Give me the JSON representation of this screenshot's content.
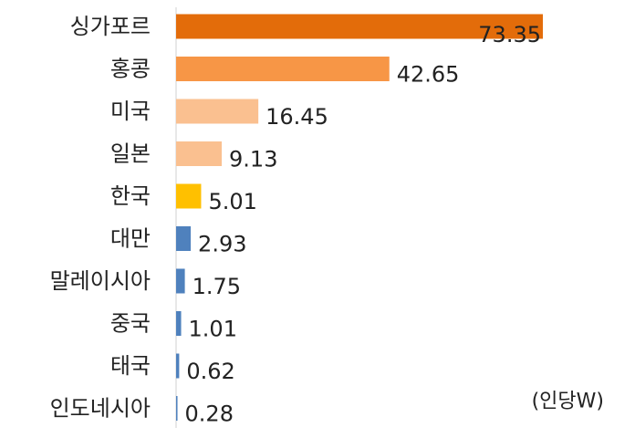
{
  "chart_data": {
    "type": "bar",
    "orientation": "horizontal",
    "categories": [
      "싱가포르",
      "홍콩",
      "미국",
      "일본",
      "한국",
      "대만",
      "말레이시아",
      "중국",
      "태국",
      "인도네시아"
    ],
    "values": [
      73.35,
      42.65,
      16.45,
      9.13,
      5.01,
      2.93,
      1.75,
      1.01,
      0.62,
      0.28
    ],
    "value_labels": [
      "73.35",
      "42.65",
      "16.45",
      "9.13",
      "5.01",
      "2.93",
      "1.75",
      "1.01",
      "0.62",
      "0.28"
    ],
    "colors": [
      "#E36C0A",
      "#F79646",
      "#FAC090",
      "#FAC090",
      "#FFC000",
      "#4F81BD",
      "#4F81BD",
      "#4F81BD",
      "#4F81BD",
      "#4F81BD"
    ],
    "unit_label": "(인당W)",
    "xlim": [
      0,
      73.35
    ],
    "grid": false,
    "legend": "none"
  }
}
